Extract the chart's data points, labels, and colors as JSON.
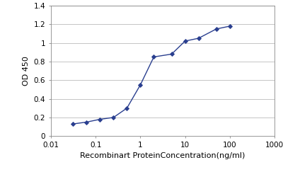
{
  "x_values": [
    0.031,
    0.062,
    0.125,
    0.25,
    0.5,
    1.0,
    2.0,
    5.0,
    10.0,
    20.0,
    50.0,
    100.0
  ],
  "y_values": [
    0.13,
    0.15,
    0.18,
    0.2,
    0.3,
    0.55,
    0.85,
    0.88,
    1.02,
    1.05,
    1.15,
    1.18
  ],
  "line_color": "#2a3f8f",
  "marker": "D",
  "marker_size": 3,
  "marker_facecolor": "#2a3f8f",
  "xlabel": "Recombinart ProteinConcentration(ng/ml)",
  "ylabel": "OD 450",
  "xlim": [
    0.01,
    1000
  ],
  "ylim": [
    0,
    1.4
  ],
  "yticks": [
    0,
    0.2,
    0.4,
    0.6,
    0.8,
    1.0,
    1.2,
    1.4
  ],
  "ytick_labels": [
    "0",
    "0.2",
    "0.4",
    "0.6",
    "0.8",
    "1",
    "1.2",
    "1.4"
  ],
  "xtick_labels": [
    "0.01",
    "0.1",
    "1",
    "10",
    "100",
    "1000"
  ],
  "xtick_positions": [
    0.01,
    0.1,
    1,
    10,
    100,
    1000
  ],
  "grid_color": "#bbbbbb",
  "background_color": "#ffffff",
  "linewidth": 1.0,
  "xlabel_fontsize": 8,
  "ylabel_fontsize": 8,
  "tick_fontsize": 7.5
}
